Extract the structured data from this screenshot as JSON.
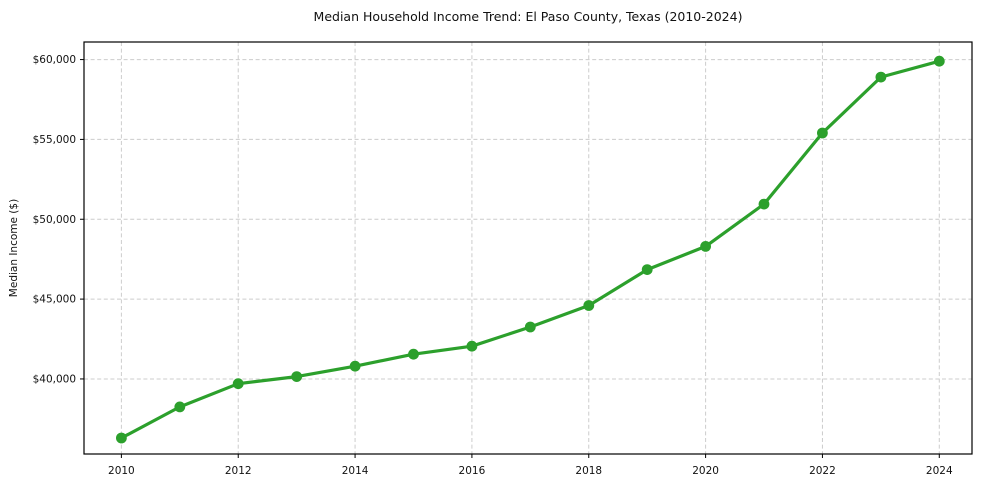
{
  "chart_data": {
    "type": "line",
    "title": "Median Household Income Trend: El Paso County, Texas (2010-2024)",
    "xlabel": "",
    "ylabel": "Median Income ($)",
    "x": [
      2010,
      2011,
      2012,
      2013,
      2014,
      2015,
      2016,
      2017,
      2018,
      2019,
      2020,
      2021,
      2022,
      2023,
      2024
    ],
    "values": [
      36300,
      38250,
      39700,
      40150,
      40800,
      41550,
      42050,
      43250,
      44600,
      46850,
      48300,
      50950,
      55400,
      58900,
      59900
    ],
    "xticks": [
      2010,
      2012,
      2014,
      2016,
      2018,
      2020,
      2022,
      2024
    ],
    "xtick_labels": [
      "2010",
      "2012",
      "2014",
      "2016",
      "2018",
      "2020",
      "2022",
      "2024"
    ],
    "yticks": [
      40000,
      45000,
      50000,
      55000,
      60000
    ],
    "ytick_labels": [
      "$40,000",
      "$45,000",
      "$50,000",
      "$55,000",
      "$60,000"
    ],
    "xlim": [
      2009.36,
      2024.56
    ],
    "ylim": [
      35300,
      61100
    ],
    "grid": true,
    "grid_style": "dashed",
    "legend": null,
    "line_color": "#2ca02c",
    "marker_color": "#2ca02c",
    "grid_color": "#cccccc",
    "spine_color": "#000000",
    "text_color": "#111111",
    "background_color": "#ffffff"
  }
}
